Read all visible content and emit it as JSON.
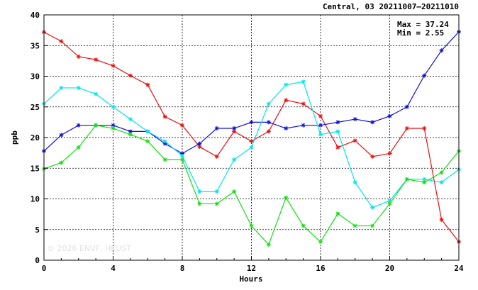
{
  "chart_data": {
    "type": "line",
    "title": "Central, 03 20211007–20211010",
    "xlabel": "Hours",
    "ylabel": "ppb",
    "xlim": [
      0,
      24
    ],
    "ylim": [
      0,
      40
    ],
    "x_ticks": [
      0,
      4,
      8,
      12,
      16,
      20,
      24
    ],
    "y_ticks": [
      0,
      5,
      10,
      15,
      20,
      25,
      30,
      35,
      40
    ],
    "grid": true,
    "stats": {
      "max_label": "Max = 37.24",
      "min_label": "Min =  2.55"
    },
    "watermark": "© 2026  ENVF, HKUST",
    "x": [
      0,
      1,
      2,
      3,
      4,
      5,
      6,
      7,
      8,
      9,
      10,
      11,
      12,
      13,
      14,
      15,
      16,
      17,
      18,
      19,
      20,
      21,
      22,
      23,
      24
    ],
    "series": [
      {
        "color": "#e81010",
        "values": [
          37.2,
          35.7,
          33.2,
          32.7,
          31.7,
          30.1,
          28.6,
          23.4,
          22.0,
          18.5,
          16.9,
          21.0,
          19.4,
          21.0,
          26.1,
          25.5,
          23.5,
          18.4,
          19.5,
          16.9,
          17.4,
          21.5,
          21.5,
          6.6,
          3.0
        ]
      },
      {
        "color": "#1010d8",
        "values": [
          17.8,
          20.4,
          22.0,
          22.0,
          22.0,
          21.0,
          21.0,
          19.0,
          17.4,
          19.0,
          21.5,
          21.5,
          22.5,
          22.5,
          21.5,
          22.0,
          22.0,
          22.5,
          23.0,
          22.5,
          23.5,
          25.0,
          30.1,
          34.2,
          37.24
        ]
      },
      {
        "color": "#00e5ee",
        "values": [
          25.5,
          28.1,
          28.1,
          27.1,
          25.0,
          23.0,
          21.0,
          19.4,
          17.0,
          11.2,
          11.2,
          16.4,
          18.4,
          25.5,
          28.6,
          29.1,
          20.5,
          21.0,
          12.7,
          8.6,
          9.7,
          13.2,
          13.2,
          12.7,
          14.8
        ]
      },
      {
        "color": "#10e010",
        "values": [
          14.9,
          15.9,
          18.4,
          22.0,
          21.5,
          20.5,
          19.4,
          16.4,
          16.4,
          9.2,
          9.2,
          11.2,
          5.6,
          2.55,
          10.2,
          5.6,
          3.0,
          7.6,
          5.6,
          5.6,
          9.2,
          13.2,
          12.7,
          14.3,
          17.8
        ]
      }
    ]
  }
}
